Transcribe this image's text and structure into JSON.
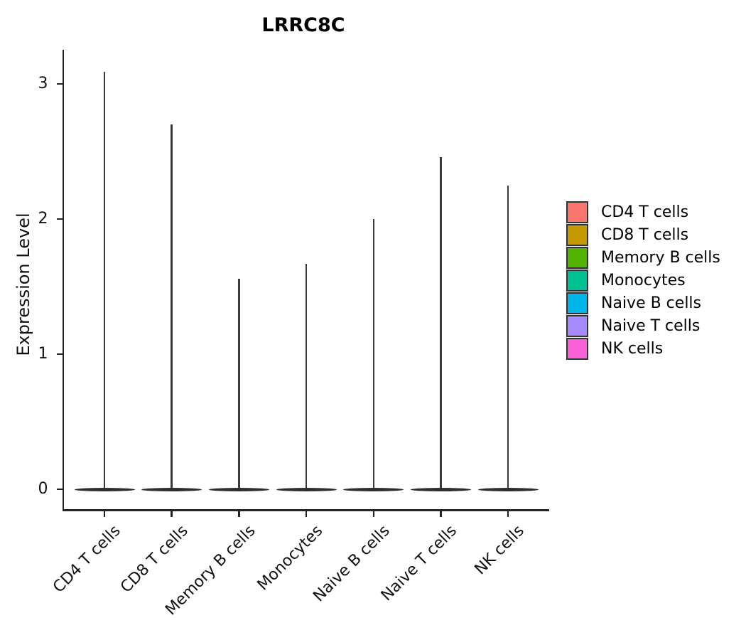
{
  "chart_data": {
    "type": "violin",
    "title": "LRRC8C",
    "xlabel": "",
    "ylabel": "Expression Level",
    "ylim": [
      0,
      3.25
    ],
    "yticks": [
      0,
      1,
      2,
      3
    ],
    "grid": false,
    "legend_position": "right",
    "axis_color": "#242424",
    "violin_outline_color": "#333333",
    "distribution_note": "Each violin is almost entirely concentrated at expression 0 (flat wide body) with a thin density tail rising to the peak value",
    "categories": [
      "CD4 T cells",
      "CD8 T cells",
      "Memory B cells",
      "Monocytes",
      "Naive B cells",
      "Naive T cells",
      "NK cells"
    ],
    "series": [
      {
        "name": "CD4 T cells",
        "color": "#F8766D",
        "baseline": 0,
        "peak_expression": 3.09
      },
      {
        "name": "CD8 T cells",
        "color": "#C49A00",
        "baseline": 0,
        "peak_expression": 2.7
      },
      {
        "name": "Memory B cells",
        "color": "#53B400",
        "baseline": 0,
        "peak_expression": 1.56
      },
      {
        "name": "Monocytes",
        "color": "#00C094",
        "baseline": 0,
        "peak_expression": 1.67
      },
      {
        "name": "Naive B cells",
        "color": "#00B6EB",
        "baseline": 0,
        "peak_expression": 2.0
      },
      {
        "name": "Naive T cells",
        "color": "#A58AFF",
        "baseline": 0,
        "peak_expression": 2.46
      },
      {
        "name": "NK cells",
        "color": "#FB61D7",
        "baseline": 0,
        "peak_expression": 2.25
      }
    ],
    "legend": {
      "position": "right",
      "entries": [
        {
          "label": "CD4 T cells",
          "color": "#F8766D"
        },
        {
          "label": "CD8 T cells",
          "color": "#C49A00"
        },
        {
          "label": "Memory B cells",
          "color": "#53B400"
        },
        {
          "label": "Monocytes",
          "color": "#00C094"
        },
        {
          "label": "Naive B cells",
          "color": "#00B6EB"
        },
        {
          "label": "Naive T cells",
          "color": "#A58AFF"
        },
        {
          "label": "NK cells",
          "color": "#FB61D7"
        }
      ]
    }
  }
}
